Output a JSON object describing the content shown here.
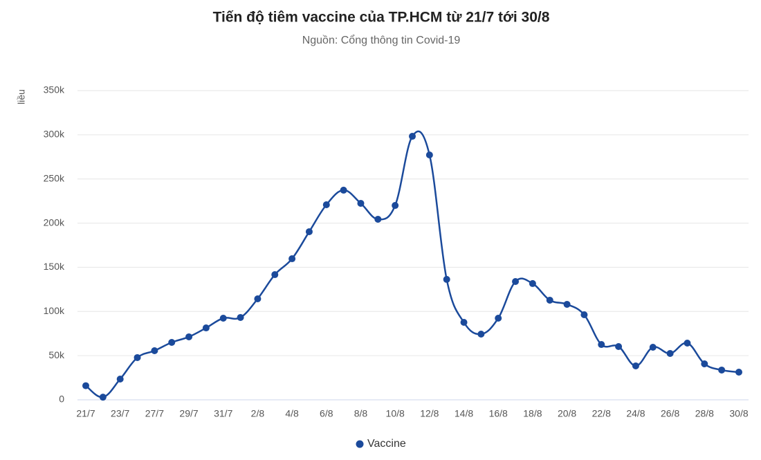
{
  "chart_data": {
    "type": "line",
    "title": "Tiến độ tiêm vaccine của TP.HCM từ 21/7 tới 30/8",
    "subtitle": "Nguồn: Cổng thông tin Covid-19",
    "y_label": "liều",
    "categories": [
      "21/7",
      null,
      "23/7",
      null,
      "27/7",
      null,
      "29/7",
      null,
      "31/7",
      null,
      "2/8",
      null,
      "4/8",
      null,
      "6/8",
      null,
      "8/8",
      null,
      "10/8",
      null,
      "12/8",
      null,
      "14/8",
      null,
      "16/8",
      null,
      "18/8",
      null,
      "20/8",
      null,
      "22/8",
      null,
      "24/8",
      null,
      "26/8",
      null,
      "28/8",
      null,
      "30/8"
    ],
    "series": [
      {
        "name": "Vaccine",
        "color": "#1b4a9b",
        "values": [
          16000,
          3000,
          23500,
          47800,
          55600,
          65000,
          71300,
          81400,
          92400,
          93200,
          114300,
          141700,
          159700,
          190300,
          220800,
          237300,
          222400,
          204400,
          220000,
          298300,
          277200,
          136300,
          87700,
          74400,
          92400,
          133900,
          131600,
          112800,
          108100,
          96300,
          62600,
          60300,
          38400,
          59500,
          52500,
          64200,
          40700,
          33700,
          31300
        ]
      }
    ],
    "ylim": [
      0,
      350000
    ],
    "yticks": [
      0,
      {
        "value": 50000,
        "label": "50k"
      },
      {
        "value": 100000,
        "label": "100k"
      },
      {
        "value": 150000,
        "label": "150k"
      },
      {
        "value": 200000,
        "label": "200k"
      },
      {
        "value": 250000,
        "label": "250k"
      },
      {
        "value": 300000,
        "label": "300k"
      },
      {
        "value": 350000,
        "label": "350k"
      }
    ],
    "grid": true,
    "legend": "bottom"
  }
}
